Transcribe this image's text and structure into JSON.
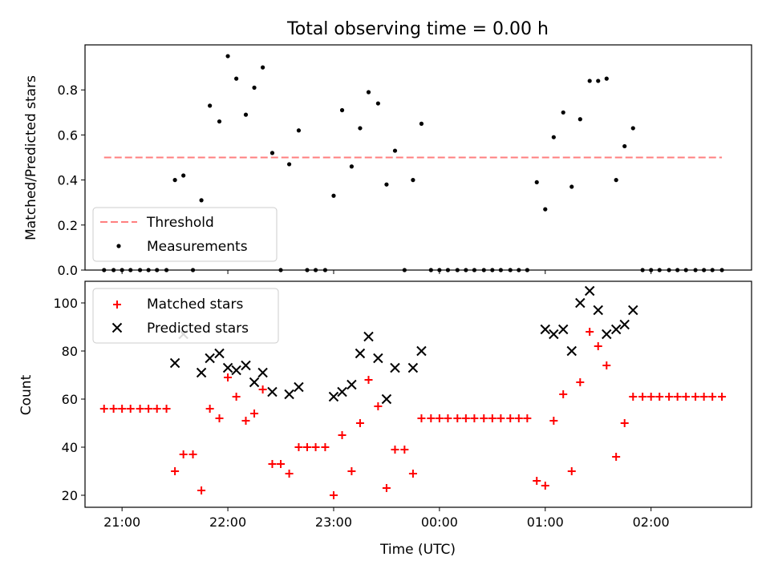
{
  "figure": {
    "title": "Total observing time = 0.00 h",
    "xlabel": "Time (UTC)"
  },
  "chart_data": [
    {
      "type": "scatter",
      "ylabel": "Matched/Predicted stars",
      "ylim": [
        0,
        1.0
      ],
      "yticks": [
        "0.0",
        "0.2",
        "0.4",
        "0.6",
        "0.8"
      ],
      "ytick_values": [
        0,
        0.2,
        0.4,
        0.6,
        0.8
      ],
      "xlim_hours": [
        20.65,
        26.95
      ],
      "xticks": [
        "21:00",
        "22:00",
        "23:00",
        "00:00",
        "01:00",
        "02:00"
      ],
      "xtick_hours": [
        21,
        22,
        23,
        24,
        25,
        26
      ],
      "legend_position": "lower-left",
      "threshold": {
        "name": "Threshold",
        "y": 0.5,
        "x_hours": [
          20.83,
          26.67
        ],
        "color": "#ff7f7f"
      },
      "series": [
        {
          "name": "Measurements",
          "color": "#000000",
          "x_hours": [
            20.83,
            20.92,
            21.0,
            21.08,
            21.17,
            21.25,
            21.33,
            21.42,
            21.5,
            21.58,
            21.67,
            21.75,
            21.83,
            21.92,
            22.0,
            22.08,
            22.17,
            22.25,
            22.33,
            22.42,
            22.5,
            22.58,
            22.67,
            22.75,
            22.83,
            22.92,
            23.0,
            23.08,
            23.17,
            23.25,
            23.33,
            23.42,
            23.5,
            23.58,
            23.67,
            23.75,
            23.83,
            23.92,
            24.0,
            24.08,
            24.17,
            24.25,
            24.33,
            24.42,
            24.5,
            24.58,
            24.67,
            24.75,
            24.83,
            24.92,
            25.0,
            25.08,
            25.17,
            25.25,
            25.33,
            25.42,
            25.5,
            25.58,
            25.67,
            25.75,
            25.83,
            25.92,
            26.0,
            26.08,
            26.17,
            26.25,
            26.33,
            26.42,
            26.5,
            26.58,
            26.67
          ],
          "y": [
            0,
            0,
            0,
            0,
            0,
            0,
            0,
            0,
            0.4,
            0.42,
            0,
            0.31,
            0.73,
            0.66,
            0.95,
            0.85,
            0.69,
            0.81,
            0.9,
            0.52,
            0,
            0.47,
            0.62,
            0,
            0,
            0,
            0.33,
            0.71,
            0.46,
            0.63,
            0.79,
            0.74,
            0.38,
            0.53,
            0,
            0.4,
            0.65,
            0,
            0,
            0,
            0,
            0,
            0,
            0,
            0,
            0,
            0,
            0,
            0,
            0.39,
            0.27,
            0.59,
            0.7,
            0.37,
            0.67,
            0.84,
            0.84,
            0.85,
            0.4,
            0.55,
            0.63,
            0,
            0,
            0,
            0,
            0,
            0,
            0,
            0,
            0,
            0
          ]
        }
      ]
    },
    {
      "type": "scatter",
      "ylabel": "Count",
      "ylim": [
        15,
        109
      ],
      "yticks": [
        "20",
        "40",
        "60",
        "80",
        "100"
      ],
      "ytick_values": [
        20,
        40,
        60,
        80,
        100
      ],
      "xlim_hours": [
        20.65,
        26.95
      ],
      "xticks": [
        "21:00",
        "22:00",
        "23:00",
        "00:00",
        "01:00",
        "02:00"
      ],
      "xtick_hours": [
        21,
        22,
        23,
        24,
        25,
        26
      ],
      "legend_position": "upper-left",
      "series": [
        {
          "name": "Matched stars",
          "marker": "plus",
          "color": "#ff0000",
          "x_hours": [
            20.83,
            20.92,
            21.0,
            21.08,
            21.17,
            21.25,
            21.33,
            21.42,
            21.5,
            21.58,
            21.67,
            21.75,
            21.83,
            21.92,
            22.0,
            22.08,
            22.17,
            22.25,
            22.33,
            22.42,
            22.5,
            22.58,
            22.67,
            22.75,
            22.83,
            22.92,
            23.0,
            23.08,
            23.17,
            23.25,
            23.33,
            23.42,
            23.5,
            23.58,
            23.67,
            23.75,
            23.83,
            23.92,
            24.0,
            24.08,
            24.17,
            24.25,
            24.33,
            24.42,
            24.5,
            24.58,
            24.67,
            24.75,
            24.83,
            24.92,
            25.0,
            25.08,
            25.17,
            25.25,
            25.33,
            25.42,
            25.5,
            25.58,
            25.67,
            25.75,
            25.83,
            25.92,
            26.0,
            26.08,
            26.17,
            26.25,
            26.33,
            26.42,
            26.5,
            26.58,
            26.67
          ],
          "y": [
            56,
            56,
            56,
            56,
            56,
            56,
            56,
            56,
            30,
            37,
            37,
            22,
            56,
            52,
            69,
            61,
            51,
            54,
            64,
            33,
            33,
            29,
            40,
            40,
            40,
            40,
            20,
            45,
            30,
            50,
            68,
            57,
            23,
            39,
            39,
            29,
            52,
            52,
            52,
            52,
            52,
            52,
            52,
            52,
            52,
            52,
            52,
            52,
            52,
            26,
            24,
            51,
            62,
            30,
            67,
            88,
            82,
            74,
            36,
            50,
            61,
            61,
            61,
            61,
            61,
            61,
            61,
            61,
            61,
            61,
            61
          ]
        },
        {
          "name": "Predicted stars",
          "marker": "x",
          "color": "#000000",
          "x_hours": [
            21.5,
            21.58,
            21.75,
            21.83,
            21.92,
            22.0,
            22.08,
            22.17,
            22.25,
            22.33,
            22.42,
            22.58,
            22.67,
            23.0,
            23.08,
            23.17,
            23.25,
            23.33,
            23.42,
            23.5,
            23.58,
            23.75,
            23.83,
            25.0,
            25.08,
            25.17,
            25.25,
            25.33,
            25.42,
            25.5,
            25.58,
            25.67,
            25.75,
            25.83
          ],
          "y": [
            75,
            87,
            71,
            77,
            79,
            73,
            72,
            74,
            67,
            71,
            63,
            62,
            65,
            61,
            63,
            66,
            79,
            86,
            77,
            60,
            73,
            73,
            80,
            89,
            87,
            89,
            80,
            100,
            105,
            97,
            87,
            89,
            91,
            97
          ]
        }
      ]
    }
  ]
}
